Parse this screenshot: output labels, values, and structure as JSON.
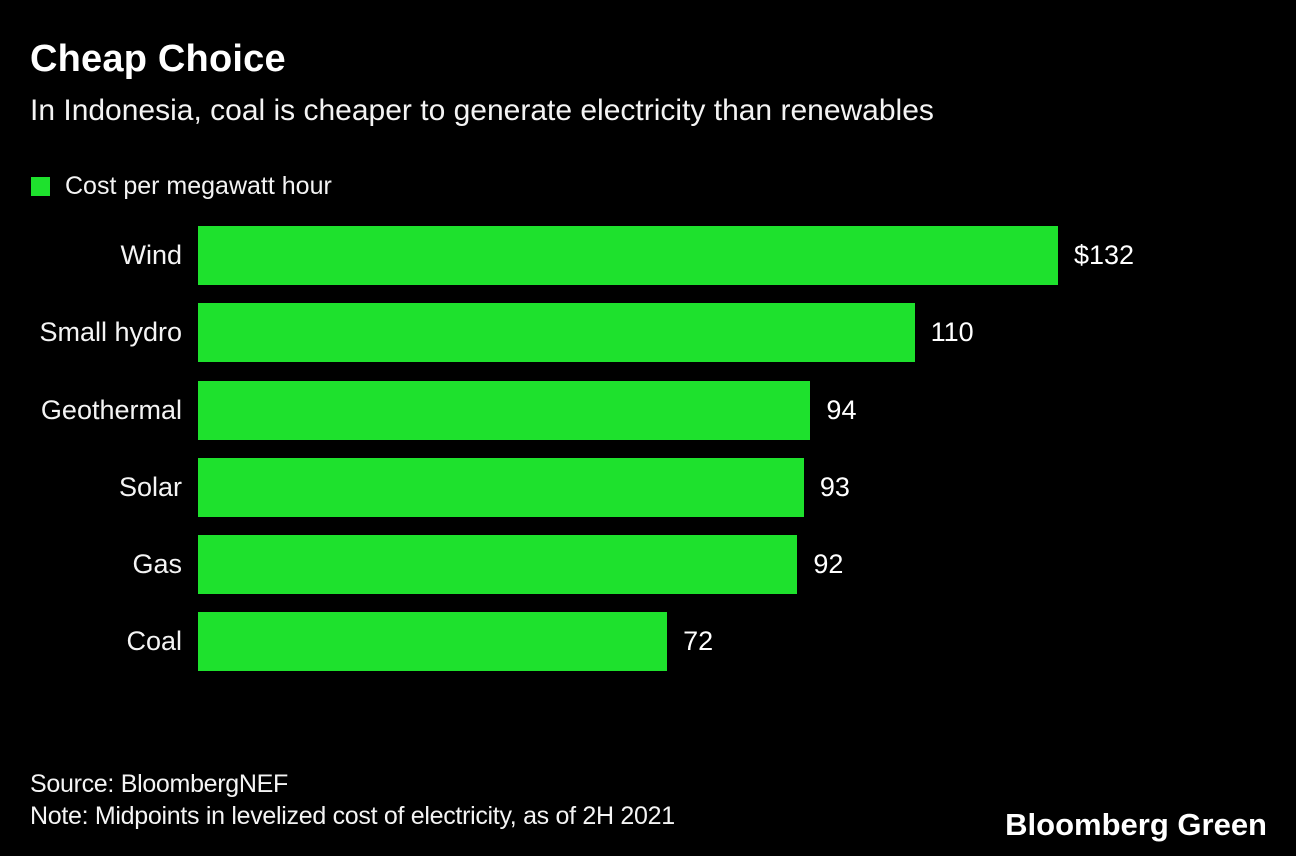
{
  "header": {
    "title": "Cheap Choice",
    "subtitle": "In Indonesia, coal is cheaper to generate electricity than renewables"
  },
  "legend": {
    "label": "Cost per megawatt hour",
    "swatch_color": "#1ee12d"
  },
  "chart_data": {
    "type": "bar",
    "orientation": "horizontal",
    "title": "Cheap Choice",
    "subtitle": "In Indonesia, coal is cheaper to generate electricity than renewables",
    "legend_entries": [
      "Cost per megawatt hour"
    ],
    "categories": [
      "Wind",
      "Small hydro",
      "Geothermal",
      "Solar",
      "Gas",
      "Coal"
    ],
    "values": [
      132,
      110,
      94,
      93,
      92,
      72
    ],
    "value_labels": [
      "$132",
      "110",
      "94",
      "93",
      "92",
      "72"
    ],
    "xlabel": "",
    "ylabel": "",
    "xlim": [
      0,
      132
    ],
    "grid": false,
    "bar_color": "#1ee12d",
    "background_color": "#000000",
    "text_color": "#ffffff"
  },
  "footer": {
    "source": "Source: BloombergNEF",
    "note": "Note: Midpoints in levelized cost of electricity, as of 2H 2021",
    "brand": "Bloomberg Green"
  }
}
